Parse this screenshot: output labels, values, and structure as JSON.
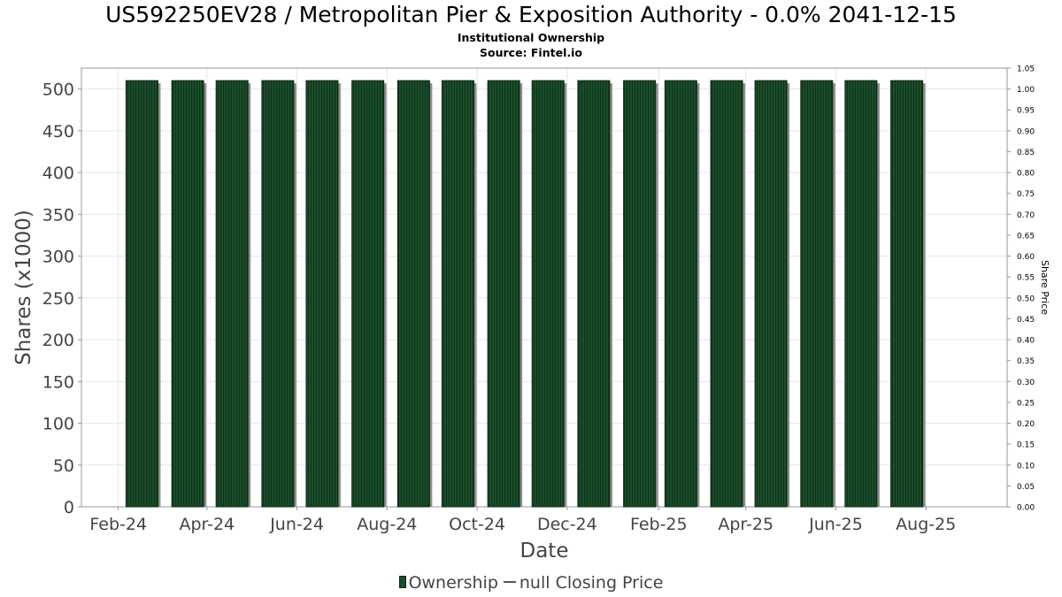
{
  "header": {
    "title": "US592250EV28 / Metropolitan Pier & Exposition Authority - 0.0% 2041-12-15",
    "subtitle": "Institutional Ownership",
    "source": "Source: Fintel.io"
  },
  "legend": {
    "ownership_label": "Ownership",
    "price_label": "null Closing Price"
  },
  "colors": {
    "bar": "#1b4d2a",
    "bar_dark": "#0b2a12",
    "bar_shadow": "#8c8c8c",
    "grid": "#e6e6e6",
    "axis_text": "#444444"
  },
  "chart_data": {
    "type": "bar",
    "title": "US592250EV28 / Metropolitan Pier & Exposition Authority - 0.0% 2041-12-15",
    "subtitle": "Institutional Ownership",
    "xlabel": "Date",
    "ylabel": "Shares (x1000)",
    "y2label": "Share Price",
    "x_ticks": [
      "Feb-24",
      "Apr-24",
      "Jun-24",
      "Aug-24",
      "Oct-24",
      "Dec-24",
      "Feb-25",
      "Apr-25",
      "Jun-25",
      "Aug-25"
    ],
    "ylim": [
      0,
      525
    ],
    "y_ticks": [
      0,
      50,
      100,
      150,
      200,
      250,
      300,
      350,
      400,
      450,
      500
    ],
    "y2lim": [
      0,
      1.05
    ],
    "y2_ticks": [
      "0.00",
      "0.05",
      "0.10",
      "0.15",
      "0.20",
      "0.25",
      "0.30",
      "0.35",
      "0.40",
      "0.45",
      "0.50",
      "0.55",
      "0.60",
      "0.65",
      "0.70",
      "0.75",
      "0.80",
      "0.85",
      "0.90",
      "0.95",
      "1.00",
      "1.05"
    ],
    "grid": true,
    "legend_position": "bottom",
    "series": [
      {
        "name": "Ownership",
        "x": [
          "2024-02-29",
          "2024-03-31",
          "2024-04-30",
          "2024-05-31",
          "2024-06-30",
          "2024-07-31",
          "2024-08-31",
          "2024-09-30",
          "2024-10-31",
          "2024-11-30",
          "2024-12-31",
          "2025-01-31",
          "2025-02-28",
          "2025-03-31",
          "2025-04-30",
          "2025-05-31",
          "2025-06-30",
          "2025-07-31"
        ],
        "values": [
          510,
          510,
          510,
          510,
          510,
          510,
          510,
          510,
          510,
          510,
          510,
          510,
          510,
          510,
          510,
          510,
          510,
          510
        ]
      }
    ]
  }
}
